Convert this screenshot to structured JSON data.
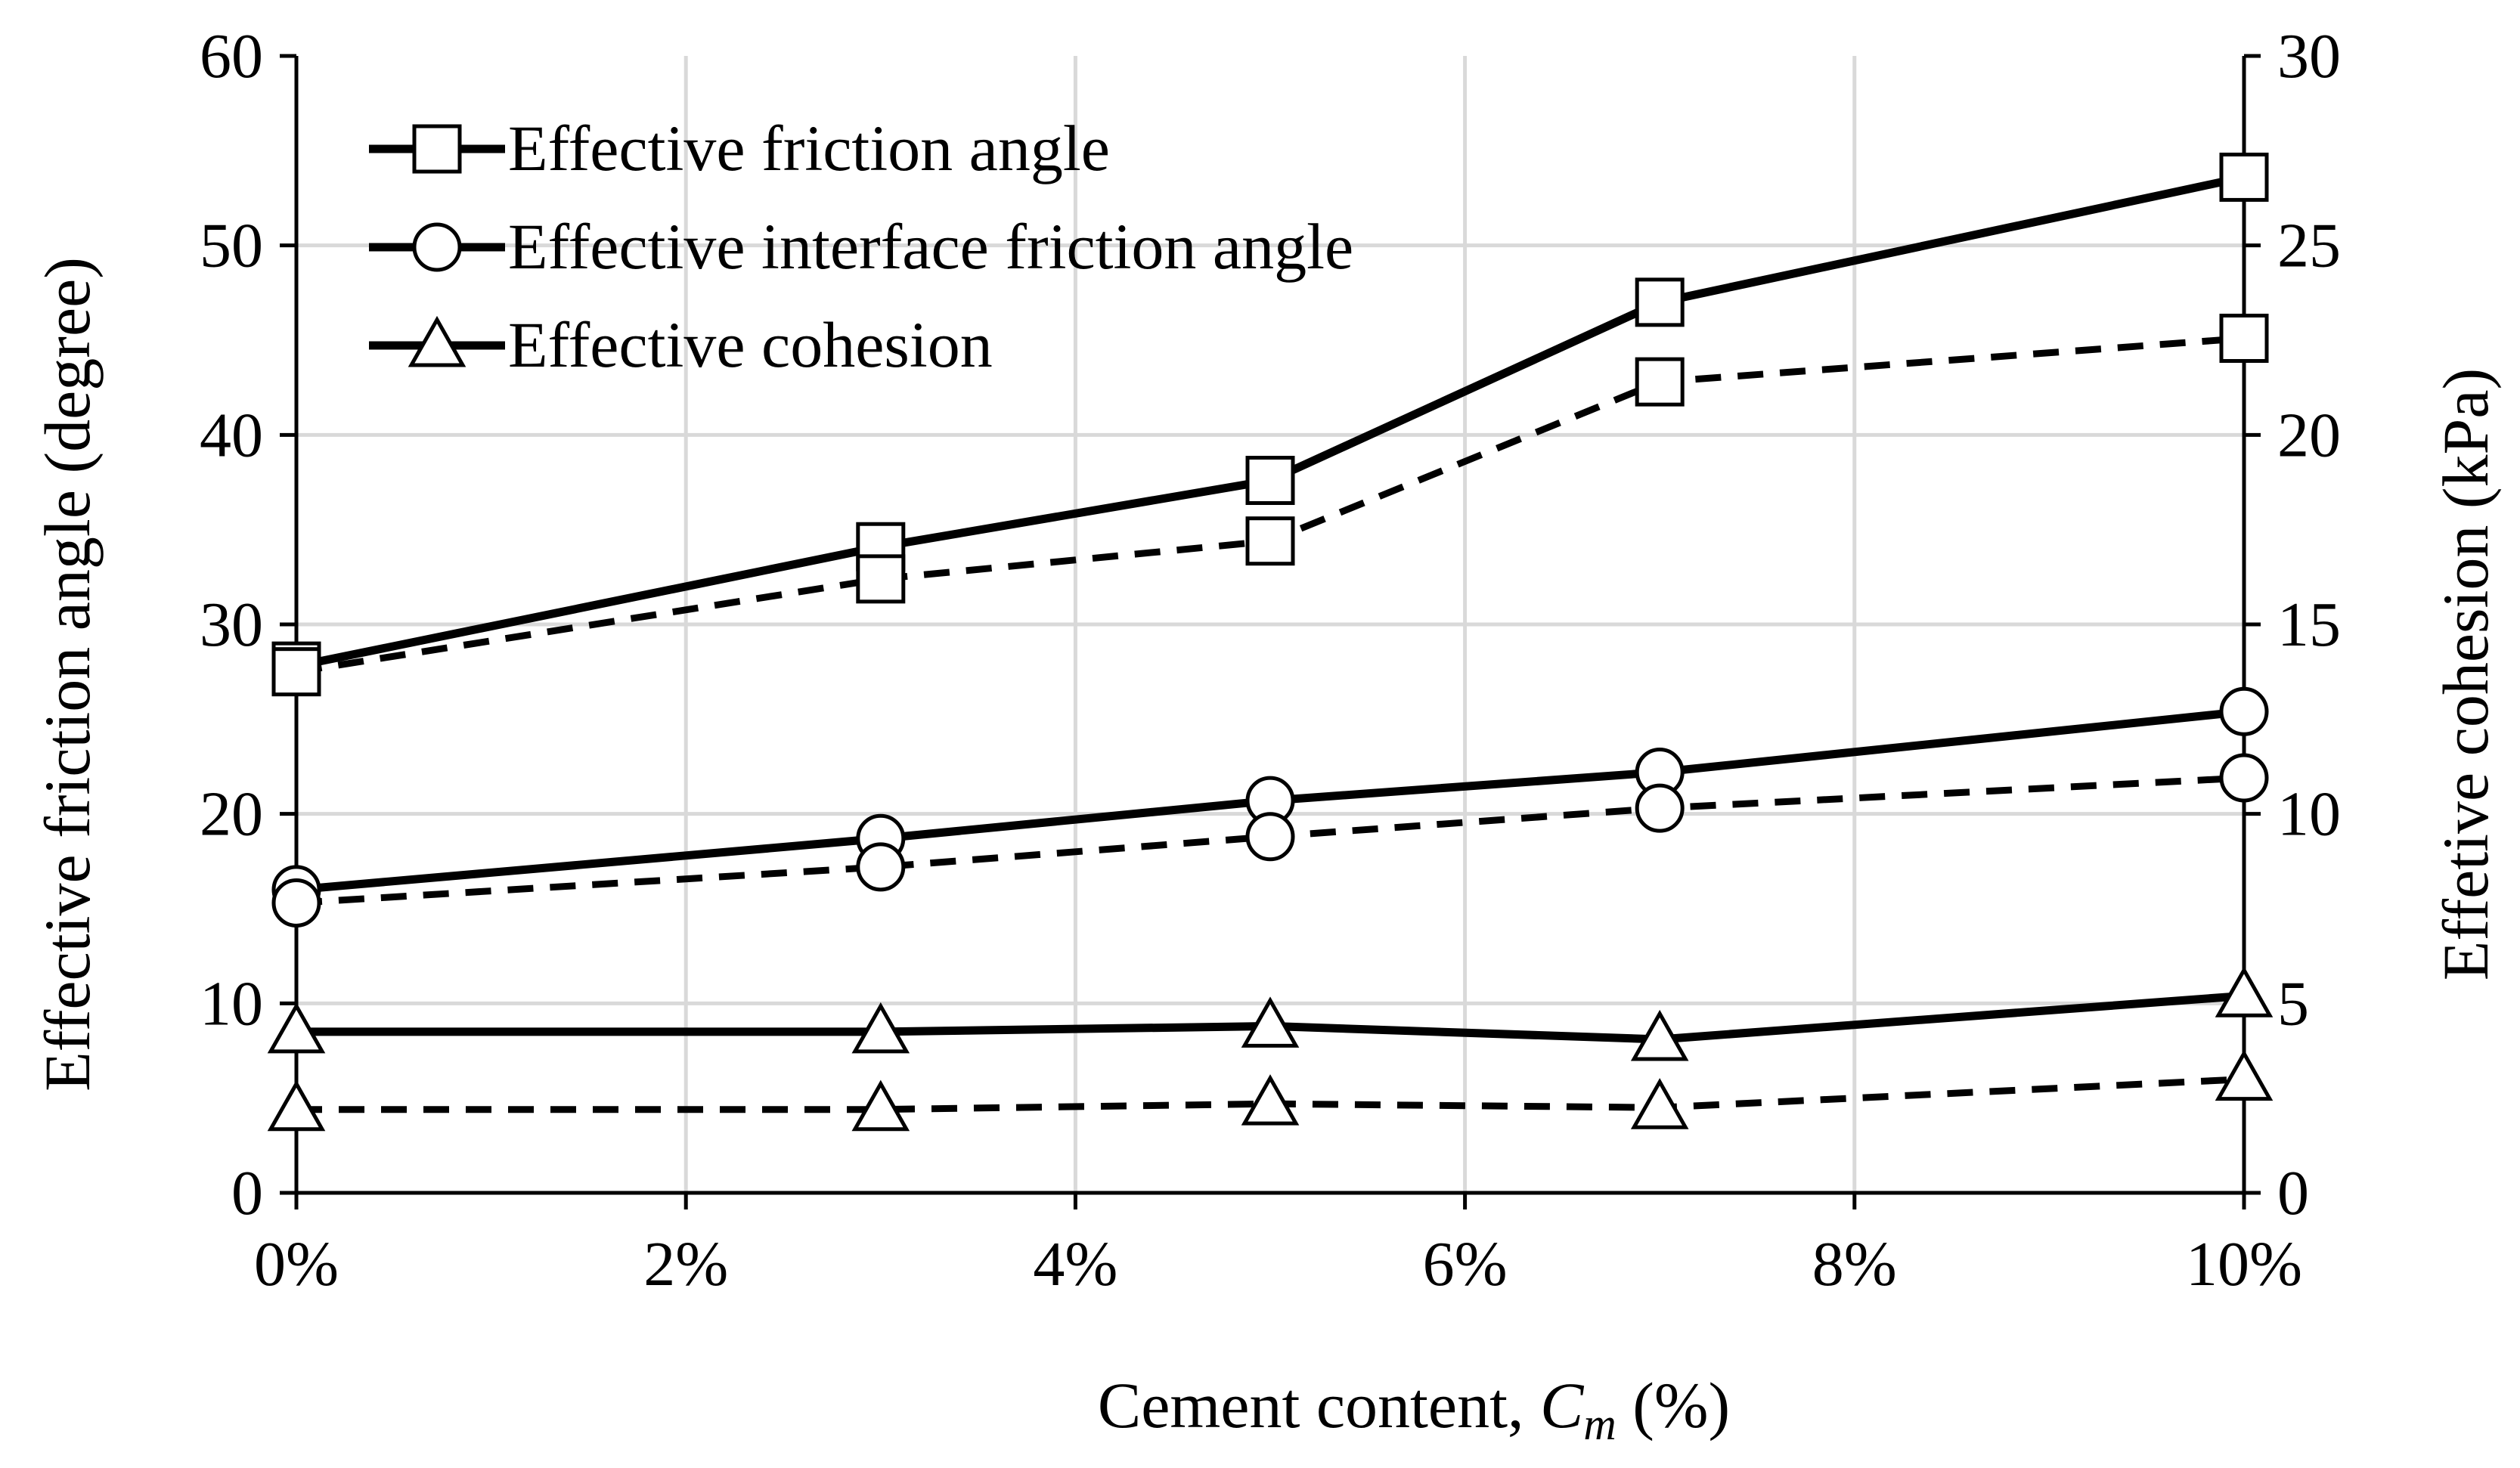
{
  "chart_data": {
    "type": "line",
    "title": "",
    "xlabel": "Cement content, ",
    "xlabel_var": "C",
    "xlabel_sub": "m",
    "xlabel_unit": " (%)",
    "ylabel": "Effective friction angle (degree)",
    "y2label": "Effetive cohesion (kPa)",
    "x": [
      0,
      3,
      5,
      7,
      10
    ],
    "xlim": [
      0,
      10
    ],
    "ylim": [
      0,
      60
    ],
    "y2lim": [
      0,
      30
    ],
    "xticks": [
      0,
      2,
      4,
      6,
      8,
      10
    ],
    "xtick_labels": [
      "0%",
      "2%",
      "4%",
      "6%",
      "8%",
      "10%"
    ],
    "yticks": [
      0,
      10,
      20,
      30,
      40,
      50,
      60
    ],
    "ytick_labels": [
      "0",
      "10",
      "20",
      "30",
      "40",
      "50",
      "60"
    ],
    "y2ticks": [
      0,
      5,
      10,
      15,
      20,
      25,
      30
    ],
    "y2tick_labels": [
      "0",
      "5",
      "10",
      "15",
      "20",
      "25",
      "30"
    ],
    "grid": true,
    "legend_position": "top-left",
    "series": [
      {
        "name": "Effective friction angle",
        "marker": "square",
        "line": "solid",
        "axis": "left",
        "values": [
          27.8,
          34.1,
          37.6,
          47.0,
          53.6
        ]
      },
      {
        "name": "Effective friction angle (dashed)",
        "marker": "square",
        "line": "dashed",
        "axis": "left",
        "values": [
          27.5,
          32.4,
          34.4,
          42.8,
          45.1
        ]
      },
      {
        "name": "Effective interface friction angle",
        "marker": "circle",
        "line": "solid",
        "axis": "left",
        "values": [
          16.0,
          18.7,
          20.7,
          22.2,
          25.4
        ]
      },
      {
        "name": "Effective interface friction angle (dashed)",
        "marker": "circle",
        "line": "dashed",
        "axis": "left",
        "values": [
          15.3,
          17.2,
          18.8,
          20.3,
          21.9
        ]
      },
      {
        "name": "Effective cohesion",
        "marker": "triangle",
        "line": "solid",
        "axis": "right",
        "values": [
          4.25,
          4.25,
          4.4,
          4.05,
          5.2
        ]
      },
      {
        "name": "Effective cohesion (dashed)",
        "marker": "triangle",
        "line": "dashed",
        "axis": "right",
        "values": [
          2.2,
          2.2,
          2.35,
          2.25,
          3.0
        ]
      }
    ],
    "legend": [
      "Effective friction angle",
      "Effective interface friction angle",
      "Effective cohesion"
    ]
  }
}
